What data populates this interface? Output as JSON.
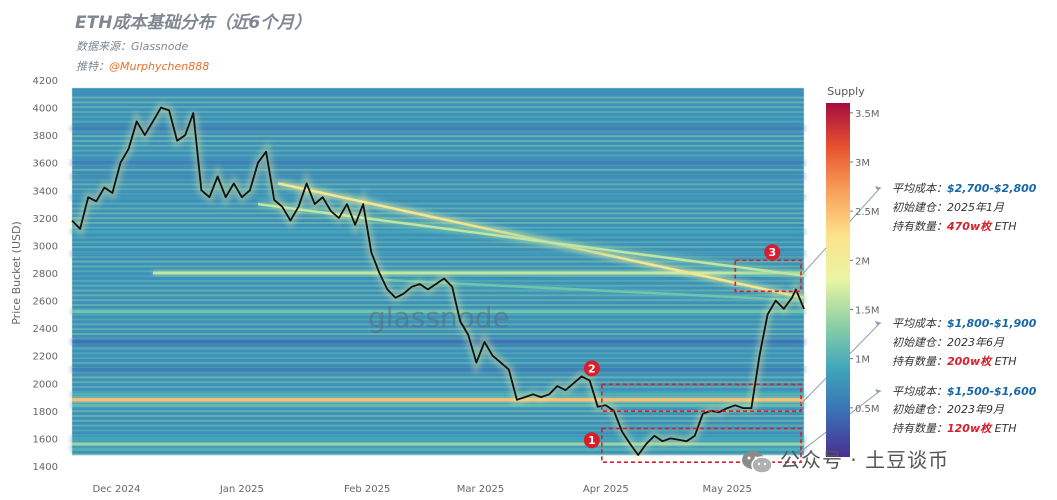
{
  "title": "ETH成本基础分布（近6个月）",
  "source_line": "数据来源：Glassnode",
  "twitter_label": "推特：",
  "twitter_handle": "@Murphychen888",
  "chart_data": {
    "type": "heatmap",
    "ylabel": "Price Bucket (USD)",
    "ylim": [
      1400,
      4200
    ],
    "yticks": [
      1400,
      1600,
      1800,
      2000,
      2200,
      2400,
      2600,
      2800,
      3000,
      3200,
      3400,
      3600,
      3800,
      4000,
      4200
    ],
    "xtick_labels": [
      "Dec 2024",
      "Jan 2025",
      "Feb 2025",
      "Mar 2025",
      "Apr 2025",
      "May 2025"
    ],
    "xtick_dates": [
      "2024-12-01",
      "2025-01-01",
      "2025-02-01",
      "2025-03-01",
      "2025-04-01",
      "2025-05-01"
    ],
    "x_range": [
      "2024-11-20",
      "2025-05-20"
    ],
    "colorbar": {
      "title": "Supply",
      "ticks": [
        "0.5M",
        "1M",
        "1.5M",
        "2M",
        "2.5M",
        "3M",
        "3.5M"
      ],
      "tick_values": [
        0.5,
        1,
        1.5,
        2,
        2.5,
        3,
        3.5
      ],
      "max": 3.6,
      "colors": [
        "#4b2f92",
        "#3a6fb5",
        "#3fa6bb",
        "#8fd0a5",
        "#e9f5a4",
        "#fde28a",
        "#f9a15a",
        "#e8522f",
        "#a50c3f"
      ]
    },
    "watermark": "glassnode",
    "price_series": [
      [
        "2024-11-20",
        3180
      ],
      [
        "2024-11-22",
        3120
      ],
      [
        "2024-11-24",
        3350
      ],
      [
        "2024-11-26",
        3320
      ],
      [
        "2024-11-28",
        3420
      ],
      [
        "2024-11-30",
        3380
      ],
      [
        "2024-12-02",
        3600
      ],
      [
        "2024-12-04",
        3700
      ],
      [
        "2024-12-06",
        3900
      ],
      [
        "2024-12-08",
        3800
      ],
      [
        "2024-12-10",
        3900
      ],
      [
        "2024-12-12",
        4000
      ],
      [
        "2024-12-14",
        3980
      ],
      [
        "2024-12-16",
        3760
      ],
      [
        "2024-12-18",
        3800
      ],
      [
        "2024-12-20",
        3960
      ],
      [
        "2024-12-22",
        3400
      ],
      [
        "2024-12-24",
        3350
      ],
      [
        "2024-12-26",
        3500
      ],
      [
        "2024-12-28",
        3350
      ],
      [
        "2024-12-30",
        3450
      ],
      [
        "2025-01-01",
        3350
      ],
      [
        "2025-01-03",
        3400
      ],
      [
        "2025-01-05",
        3600
      ],
      [
        "2025-01-07",
        3680
      ],
      [
        "2025-01-09",
        3330
      ],
      [
        "2025-01-11",
        3280
      ],
      [
        "2025-01-13",
        3180
      ],
      [
        "2025-01-15",
        3280
      ],
      [
        "2025-01-17",
        3450
      ],
      [
        "2025-01-19",
        3300
      ],
      [
        "2025-01-21",
        3350
      ],
      [
        "2025-01-23",
        3250
      ],
      [
        "2025-01-25",
        3200
      ],
      [
        "2025-01-27",
        3300
      ],
      [
        "2025-01-29",
        3150
      ],
      [
        "2025-01-31",
        3300
      ],
      [
        "2025-02-02",
        2950
      ],
      [
        "2025-02-04",
        2800
      ],
      [
        "2025-02-06",
        2680
      ],
      [
        "2025-02-08",
        2620
      ],
      [
        "2025-02-10",
        2650
      ],
      [
        "2025-02-12",
        2700
      ],
      [
        "2025-02-14",
        2720
      ],
      [
        "2025-02-16",
        2680
      ],
      [
        "2025-02-18",
        2720
      ],
      [
        "2025-02-20",
        2760
      ],
      [
        "2025-02-22",
        2700
      ],
      [
        "2025-02-24",
        2450
      ],
      [
        "2025-02-26",
        2350
      ],
      [
        "2025-02-28",
        2150
      ],
      [
        "2025-03-02",
        2300
      ],
      [
        "2025-03-04",
        2200
      ],
      [
        "2025-03-06",
        2150
      ],
      [
        "2025-03-08",
        2100
      ],
      [
        "2025-03-10",
        1880
      ],
      [
        "2025-03-12",
        1900
      ],
      [
        "2025-03-14",
        1920
      ],
      [
        "2025-03-16",
        1900
      ],
      [
        "2025-03-18",
        1920
      ],
      [
        "2025-03-20",
        1980
      ],
      [
        "2025-03-22",
        1950
      ],
      [
        "2025-03-24",
        2000
      ],
      [
        "2025-03-26",
        2050
      ],
      [
        "2025-03-28",
        2020
      ],
      [
        "2025-03-30",
        1830
      ],
      [
        "2025-04-01",
        1840
      ],
      [
        "2025-04-03",
        1800
      ],
      [
        "2025-04-05",
        1650
      ],
      [
        "2025-04-07",
        1560
      ],
      [
        "2025-04-09",
        1480
      ],
      [
        "2025-04-11",
        1560
      ],
      [
        "2025-04-13",
        1620
      ],
      [
        "2025-04-15",
        1580
      ],
      [
        "2025-04-17",
        1600
      ],
      [
        "2025-04-19",
        1590
      ],
      [
        "2025-04-21",
        1580
      ],
      [
        "2025-04-23",
        1620
      ],
      [
        "2025-04-25",
        1780
      ],
      [
        "2025-04-27",
        1800
      ],
      [
        "2025-04-29",
        1790
      ],
      [
        "2025-05-01",
        1820
      ],
      [
        "2025-05-03",
        1840
      ],
      [
        "2025-05-05",
        1820
      ],
      [
        "2025-05-07",
        1820
      ],
      [
        "2025-05-09",
        2200
      ],
      [
        "2025-05-11",
        2500
      ],
      [
        "2025-05-13",
        2600
      ],
      [
        "2025-05-15",
        2540
      ],
      [
        "2025-05-17",
        2620
      ],
      [
        "2025-05-18",
        2680
      ],
      [
        "2025-05-20",
        2540
      ]
    ],
    "bands": [
      {
        "price": 1880,
        "strength": 2.5
      },
      {
        "price": 1560,
        "strength": 1.4
      },
      {
        "price": 1520,
        "strength": 1.0
      },
      {
        "price": 1600,
        "strength": 0.9
      },
      {
        "price": 1840,
        "strength": 1.1
      },
      {
        "price": 1920,
        "strength": 1.0
      },
      {
        "price": 2520,
        "strength": 1.2
      },
      {
        "price": 2800,
        "strength": 1.6,
        "from": "2024-12-10"
      },
      {
        "price": 2940,
        "strength": 0.8
      },
      {
        "price": 3100,
        "strength": 0.9
      },
      {
        "price": 3350,
        "strength": 0.8
      },
      {
        "price": 3500,
        "strength": 0.7
      },
      {
        "price": 3600,
        "strength": 0.6
      },
      {
        "price": 3850,
        "strength": 0.6
      },
      {
        "price": 2100,
        "strength": 0.6
      },
      {
        "price": 2300,
        "strength": 0.5
      }
    ],
    "diagonals": [
      {
        "from": [
          "2025-01-10",
          3450
        ],
        "to": [
          "2025-05-20",
          2620
        ],
        "strength": 2.2
      },
      {
        "from": [
          "2025-01-05",
          3300
        ],
        "to": [
          "2025-05-20",
          2780
        ],
        "strength": 1.6
      },
      {
        "from": [
          "2025-02-05",
          2750
        ],
        "to": [
          "2025-05-20",
          2600
        ],
        "strength": 1.2
      }
    ],
    "annotations": [
      {
        "marker": "1",
        "price_range": [
          1500,
          1600
        ],
        "date_range": [
          "2025-04-01",
          "2025-05-20"
        ],
        "lines": [
          {
            "label": "平均成本：",
            "value": "$1,500-$1,600"
          },
          {
            "label": "初始建仓：",
            "value": "2023年9月"
          },
          {
            "label": "持有数量：",
            "value": "120w枚",
            "suffix": " ETH"
          }
        ]
      },
      {
        "marker": "2",
        "price_range": [
          1870,
          1920
        ],
        "date_range": [
          "2025-04-01",
          "2025-05-20"
        ],
        "lines": [
          {
            "label": "平均成本：",
            "value": "$1,800-$1,900"
          },
          {
            "label": "初始建仓：",
            "value": "2023年6月"
          },
          {
            "label": "持有数量：",
            "value": "200w枚",
            "suffix": " ETH"
          }
        ]
      },
      {
        "marker": "3",
        "price_range": [
          2740,
          2820
        ],
        "date_range": [
          "2025-05-04",
          "2025-05-20"
        ],
        "lines": [
          {
            "label": "平均成本：",
            "value": "$2,700-$2,800"
          },
          {
            "label": "初始建仓：",
            "value": "2025年1月"
          },
          {
            "label": "持有数量：",
            "value": "470w枚",
            "suffix": " ETH"
          }
        ]
      }
    ]
  },
  "footer_watermark": "公众号 · 土豆谈币"
}
